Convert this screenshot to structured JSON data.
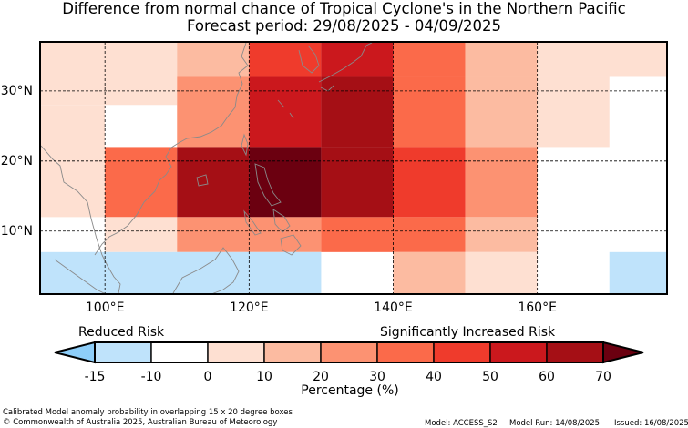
{
  "title": {
    "line1": "Difference from normal chance of Tropical Cyclone's in the Northern Pacific",
    "line2": "Forecast period: 29/08/2025 - 04/09/2025"
  },
  "map": {
    "lon_range": [
      91,
      178
    ],
    "lat_range": [
      1,
      37
    ],
    "lat_ticks": [
      {
        "value": 30,
        "label": "30°N"
      },
      {
        "value": 20,
        "label": "20°N"
      },
      {
        "value": 10,
        "label": "10°N"
      }
    ],
    "lon_ticks": [
      {
        "value": 100,
        "label": "100°E"
      },
      {
        "value": 120,
        "label": "120°E"
      },
      {
        "value": 140,
        "label": "140°E"
      },
      {
        "value": 160,
        "label": "160°E"
      }
    ],
    "cells": [
      {
        "lon0": 91,
        "lon1": 110,
        "lat0": 28,
        "lat1": 37,
        "value": 5
      },
      {
        "lon0": 110,
        "lon1": 120,
        "lat0": 32,
        "lat1": 37,
        "value": 15
      },
      {
        "lon0": 120,
        "lon1": 130,
        "lat0": 32,
        "lat1": 37,
        "value": 45
      },
      {
        "lon0": 130,
        "lon1": 140,
        "lat0": 32,
        "lat1": 37,
        "value": 55
      },
      {
        "lon0": 140,
        "lon1": 150,
        "lat0": 32,
        "lat1": 37,
        "value": 35
      },
      {
        "lon0": 150,
        "lon1": 160,
        "lat0": 32,
        "lat1": 37,
        "value": 15
      },
      {
        "lon0": 160,
        "lon1": 178,
        "lat0": 32,
        "lat1": 37,
        "value": 5
      },
      {
        "lon0": 110,
        "lon1": 120,
        "lat0": 22,
        "lat1": 32,
        "value": 25
      },
      {
        "lon0": 120,
        "lon1": 130,
        "lat0": 22,
        "lat1": 32,
        "value": 55
      },
      {
        "lon0": 130,
        "lon1": 140,
        "lat0": 22,
        "lat1": 32,
        "value": 65
      },
      {
        "lon0": 140,
        "lon1": 150,
        "lat0": 22,
        "lat1": 32,
        "value": 35
      },
      {
        "lon0": 150,
        "lon1": 160,
        "lat0": 22,
        "lat1": 32,
        "value": 15
      },
      {
        "lon0": 160,
        "lon1": 170,
        "lat0": 22,
        "lat1": 32,
        "value": 5
      },
      {
        "lon0": 91,
        "lon1": 100,
        "lat0": 12,
        "lat1": 28,
        "value": 5
      },
      {
        "lon0": 100,
        "lon1": 110,
        "lat0": 12,
        "lat1": 22,
        "value": 35
      },
      {
        "lon0": 110,
        "lon1": 120,
        "lat0": 12,
        "lat1": 22,
        "value": 65
      },
      {
        "lon0": 120,
        "lon1": 130,
        "lat0": 12,
        "lat1": 22,
        "value": 75
      },
      {
        "lon0": 130,
        "lon1": 140,
        "lat0": 12,
        "lat1": 22,
        "value": 65
      },
      {
        "lon0": 140,
        "lon1": 150,
        "lat0": 12,
        "lat1": 22,
        "value": 45
      },
      {
        "lon0": 150,
        "lon1": 160,
        "lat0": 12,
        "lat1": 22,
        "value": 25
      },
      {
        "lon0": 100,
        "lon1": 110,
        "lat0": 7,
        "lat1": 12,
        "value": 5
      },
      {
        "lon0": 110,
        "lon1": 130,
        "lat0": 7,
        "lat1": 12,
        "value": 25
      },
      {
        "lon0": 130,
        "lon1": 150,
        "lat0": 7,
        "lat1": 12,
        "value": 35
      },
      {
        "lon0": 150,
        "lon1": 160,
        "lat0": 7,
        "lat1": 12,
        "value": 15
      },
      {
        "lon0": 170,
        "lon1": 178,
        "lat0": 7,
        "lat1": 12,
        "value": -5
      },
      {
        "lon0": 91,
        "lon1": 130,
        "lat0": 1,
        "lat1": 7,
        "value": -12
      },
      {
        "lon0": 140,
        "lon1": 150,
        "lat0": 1,
        "lat1": 7,
        "value": 15
      },
      {
        "lon0": 150,
        "lon1": 160,
        "lat0": 1,
        "lat1": 7,
        "value": 5
      },
      {
        "lon0": 160,
        "lon1": 170,
        "lat0": 1,
        "lat1": 7,
        "value": -5
      },
      {
        "lon0": 170,
        "lon1": 178,
        "lat0": 1,
        "lat1": 7,
        "value": -12
      }
    ]
  },
  "colorbar": {
    "left_label": "Reduced Risk",
    "right_label": "Significantly Increased Risk",
    "xlabel": "Percentage (%)",
    "under_color": "#8ecef9",
    "over_color": "#6b0010",
    "bins": [
      {
        "min": -15,
        "max": -10,
        "color": "#bfe3fb"
      },
      {
        "min": -10,
        "max": 0,
        "color": "#ffffff"
      },
      {
        "min": 0,
        "max": 10,
        "color": "#fee0d2"
      },
      {
        "min": 10,
        "max": 20,
        "color": "#fcbba1"
      },
      {
        "min": 20,
        "max": 30,
        "color": "#fc9272"
      },
      {
        "min": 30,
        "max": 40,
        "color": "#fb6a4a"
      },
      {
        "min": 40,
        "max": 50,
        "color": "#ef3b2c"
      },
      {
        "min": 50,
        "max": 60,
        "color": "#cb181d"
      },
      {
        "min": 60,
        "max": 70,
        "color": "#a50f15"
      }
    ],
    "ticks": [
      "-15",
      "-10",
      "0",
      "10",
      "20",
      "30",
      "40",
      "50",
      "60",
      "70"
    ]
  },
  "footer": {
    "left_line1": "Calibrated Model anomaly probability in overlapping 15 x 20 degree boxes",
    "left_line2": "© Commonwealth of Australia 2025, Australian Bureau of Meteorology",
    "model": "Model: ACCESS_S2",
    "model_run": "Model Run: 14/08/2025",
    "issued": "Issued: 16/08/2025"
  },
  "coastline_color": "#8a8a8a"
}
